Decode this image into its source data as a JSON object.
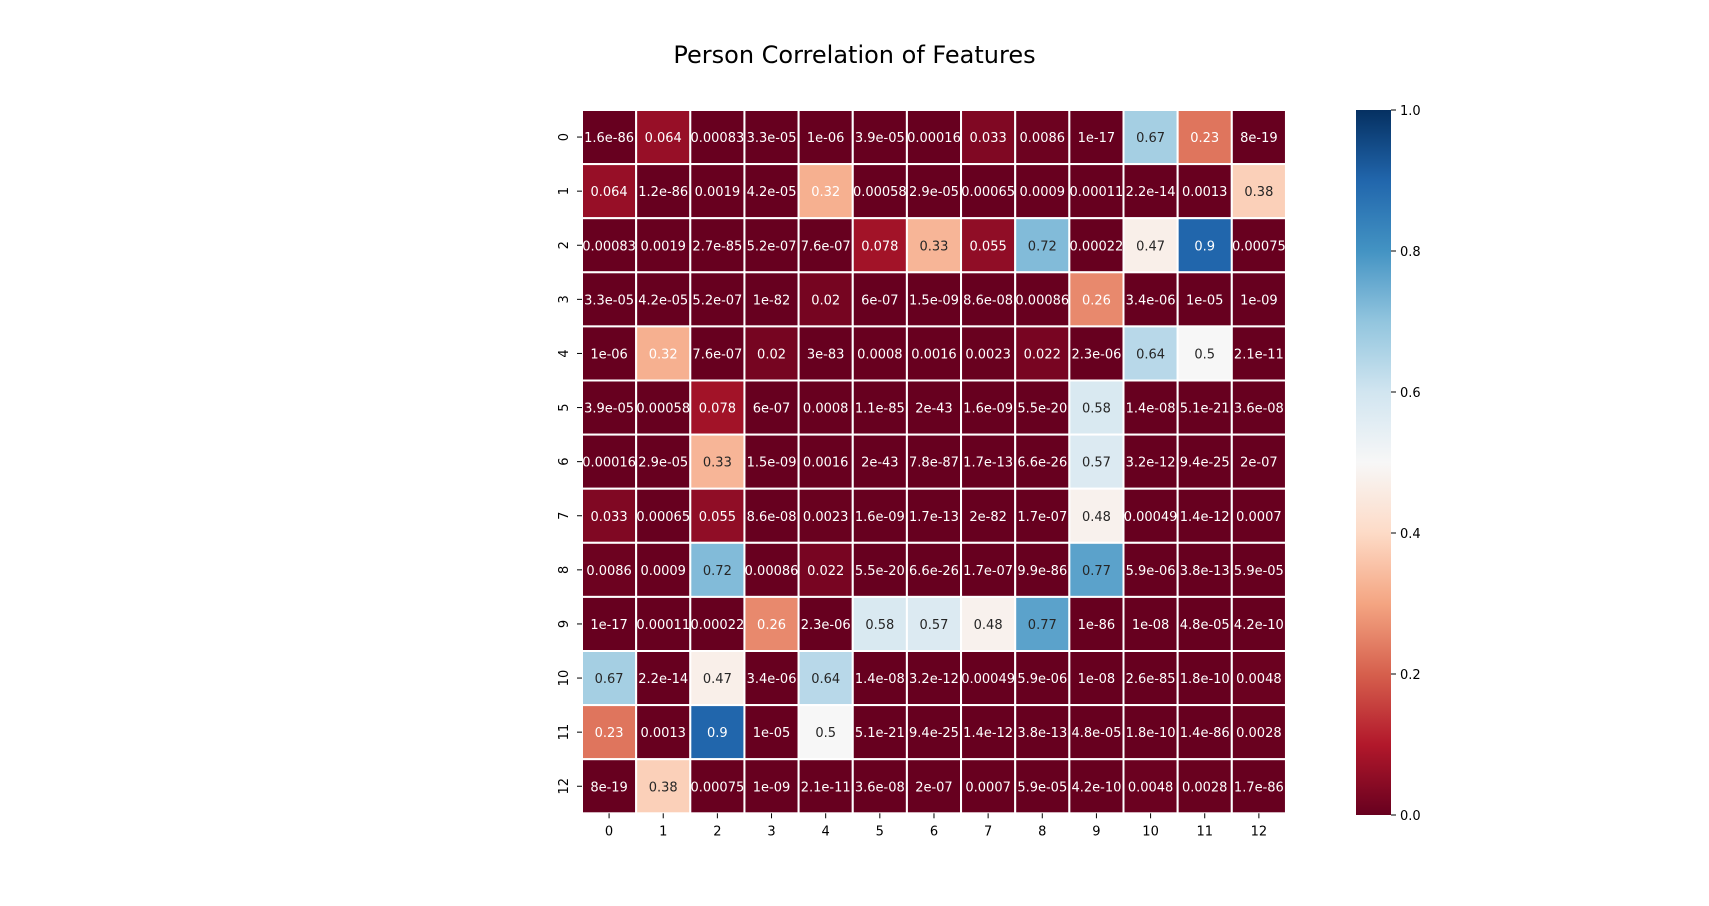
{
  "chart_data": {
    "type": "heatmap",
    "title": "Person Correlation of Features",
    "xlabel": "",
    "ylabel": "",
    "x_ticks": [
      "0",
      "1",
      "2",
      "3",
      "4",
      "5",
      "6",
      "7",
      "8",
      "9",
      "10",
      "11",
      "12"
    ],
    "y_ticks": [
      "0",
      "1",
      "2",
      "3",
      "4",
      "5",
      "6",
      "7",
      "8",
      "9",
      "10",
      "11",
      "12"
    ],
    "colormap": "RdBu",
    "vmin": 0.0,
    "vmax": 1.0,
    "colorbar_ticks": [
      "0.0",
      "0.2",
      "0.4",
      "0.6",
      "0.8",
      "1.0"
    ],
    "colorbar_tick_values": [
      0.0,
      0.2,
      0.4,
      0.6,
      0.8,
      1.0
    ],
    "labels": [
      [
        "1.6e-86",
        "0.064",
        "0.00083",
        "3.3e-05",
        "1e-06",
        "3.9e-05",
        "0.00016",
        "0.033",
        "0.0086",
        "1e-17",
        "0.67",
        "0.23",
        "8e-19"
      ],
      [
        "0.064",
        "1.2e-86",
        "0.0019",
        "4.2e-05",
        "0.32",
        "0.00058",
        "2.9e-05",
        "0.00065",
        "0.0009",
        "0.00011",
        "2.2e-14",
        "0.0013",
        "0.38"
      ],
      [
        "0.00083",
        "0.0019",
        "2.7e-85",
        "5.2e-07",
        "7.6e-07",
        "0.078",
        "0.33",
        "0.055",
        "0.72",
        "0.00022",
        "0.47",
        "0.9",
        "0.00075"
      ],
      [
        "3.3e-05",
        "4.2e-05",
        "5.2e-07",
        "1e-82",
        "0.02",
        "6e-07",
        "1.5e-09",
        "8.6e-08",
        "0.00086",
        "0.26",
        "3.4e-06",
        "1e-05",
        "1e-09"
      ],
      [
        "1e-06",
        "0.32",
        "7.6e-07",
        "0.02",
        "3e-83",
        "0.0008",
        "0.0016",
        "0.0023",
        "0.022",
        "2.3e-06",
        "0.64",
        "0.5",
        "2.1e-11"
      ],
      [
        "3.9e-05",
        "0.00058",
        "0.078",
        "6e-07",
        "0.0008",
        "1.1e-85",
        "2e-43",
        "1.6e-09",
        "5.5e-20",
        "0.58",
        "1.4e-08",
        "5.1e-21",
        "3.6e-08"
      ],
      [
        "0.00016",
        "2.9e-05",
        "0.33",
        "1.5e-09",
        "0.0016",
        "2e-43",
        "7.8e-87",
        "1.7e-13",
        "6.6e-26",
        "0.57",
        "3.2e-12",
        "9.4e-25",
        "2e-07"
      ],
      [
        "0.033",
        "0.00065",
        "0.055",
        "8.6e-08",
        "0.0023",
        "1.6e-09",
        "1.7e-13",
        "2e-82",
        "1.7e-07",
        "0.48",
        "0.00049",
        "1.4e-12",
        "0.0007"
      ],
      [
        "0.0086",
        "0.0009",
        "0.72",
        "0.00086",
        "0.022",
        "5.5e-20",
        "6.6e-26",
        "1.7e-07",
        "9.9e-86",
        "0.77",
        "5.9e-06",
        "3.8e-13",
        "5.9e-05"
      ],
      [
        "1e-17",
        "0.00011",
        "0.00022",
        "0.26",
        "2.3e-06",
        "0.58",
        "0.57",
        "0.48",
        "0.77",
        "1e-86",
        "1e-08",
        "4.8e-05",
        "4.2e-10"
      ],
      [
        "0.67",
        "2.2e-14",
        "0.47",
        "3.4e-06",
        "0.64",
        "1.4e-08",
        "3.2e-12",
        "0.00049",
        "5.9e-06",
        "1e-08",
        "2.6e-85",
        "1.8e-10",
        "0.0048"
      ],
      [
        "0.23",
        "0.0013",
        "0.9",
        "1e-05",
        "0.5",
        "5.1e-21",
        "9.4e-25",
        "1.4e-12",
        "3.8e-13",
        "4.8e-05",
        "1.8e-10",
        "1.4e-86",
        "0.0028"
      ],
      [
        "8e-19",
        "0.38",
        "0.00075",
        "1e-09",
        "2.1e-11",
        "3.6e-08",
        "2e-07",
        "0.0007",
        "5.9e-05",
        "4.2e-10",
        "0.0048",
        "0.0028",
        "1.7e-86"
      ]
    ]
  }
}
